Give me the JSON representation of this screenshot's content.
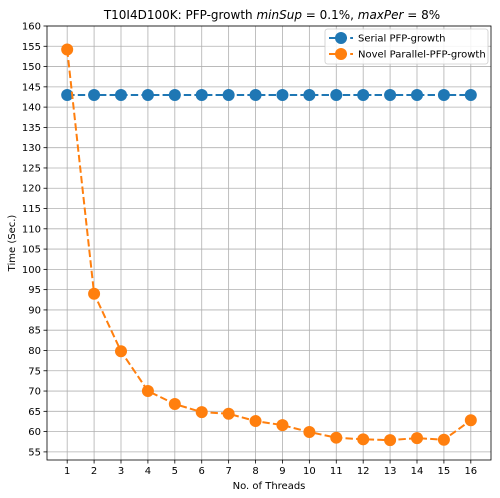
{
  "chart_data": {
    "type": "line",
    "title": {
      "lead": "T10I4D100K: PFP-growth ",
      "minsup_label": "minSup",
      "minsup_value": " = 0.1%, ",
      "maxper_label": "maxPer",
      "maxper_value": " = 8%"
    },
    "xlabel": "No. of Threads",
    "ylabel": "Time (Sec.)",
    "x": [
      1,
      2,
      3,
      4,
      5,
      6,
      7,
      8,
      9,
      10,
      11,
      12,
      13,
      14,
      15,
      16
    ],
    "xlim": [
      0.25,
      16.75
    ],
    "ylim": [
      53,
      160
    ],
    "yticks": [
      55,
      60,
      65,
      70,
      75,
      80,
      85,
      90,
      95,
      100,
      105,
      110,
      115,
      120,
      125,
      130,
      135,
      140,
      145,
      150,
      155,
      160
    ],
    "grid": true,
    "legend_position": "top-right",
    "series": [
      {
        "name": "Serial PFP-growth",
        "color": "#1f77b4",
        "values": [
          143,
          143,
          143,
          143,
          143,
          143,
          143,
          143,
          143,
          143,
          143,
          143,
          143,
          143,
          143,
          143
        ]
      },
      {
        "name": "Novel Parallel-PFP-growth",
        "color": "#ff7f0e",
        "values": [
          154.2,
          94,
          79.8,
          70,
          66.8,
          64.8,
          64.4,
          62.6,
          61.6,
          59.9,
          58.5,
          58.1,
          57.9,
          58.4,
          58,
          62.8
        ]
      }
    ]
  }
}
